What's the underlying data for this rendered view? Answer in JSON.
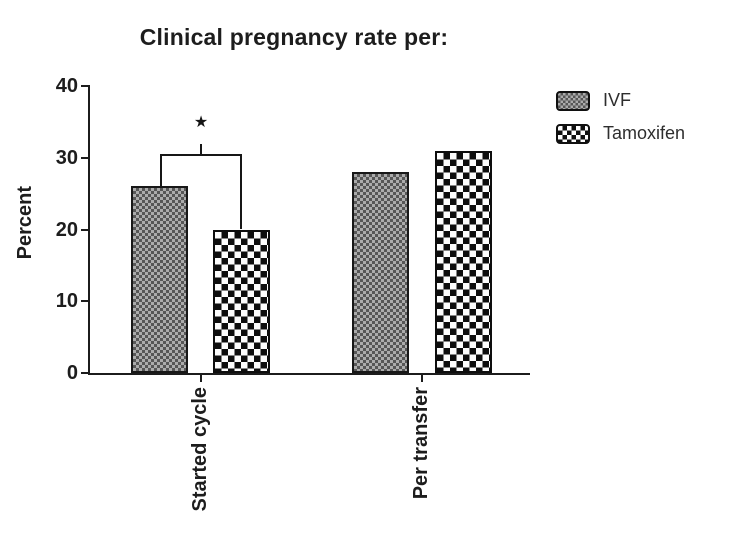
{
  "title": "Clinical pregnancy rate per:",
  "chart_data": {
    "type": "bar",
    "title": "Clinical pregnancy rate per:",
    "categories": [
      "Started cycle",
      "Per transfer"
    ],
    "series": [
      {
        "name": "IVF",
        "values": [
          26,
          28
        ],
        "pattern": "fine-gray-checker"
      },
      {
        "name": "Tamoxifen",
        "values": [
          20,
          31
        ],
        "pattern": "black-white-checkerboard"
      }
    ],
    "xlabel": "",
    "ylabel": "Percent",
    "ylim": [
      0,
      40
    ],
    "yticks": [
      0,
      10,
      20,
      30,
      40
    ],
    "grid": false,
    "legend_position": "right",
    "annotations": [
      {
        "type": "significance-bracket",
        "category": "Started cycle",
        "between": [
          "IVF",
          "Tamoxifen"
        ],
        "label": "★",
        "bracket_y": 30.5
      }
    ]
  },
  "legend": {
    "items": [
      {
        "label": "IVF"
      },
      {
        "label": "Tamoxifen"
      }
    ]
  },
  "colors": {
    "background": "#ffffff",
    "axis": "#1c1c1c",
    "text": "#1d1d1d",
    "ivf_checker_dark": "#565656",
    "ivf_checker_light": "#ababab",
    "tamoxifen_checker_dark": "#0e0e0e",
    "tamoxifen_checker_light": "#fdfdfd"
  }
}
